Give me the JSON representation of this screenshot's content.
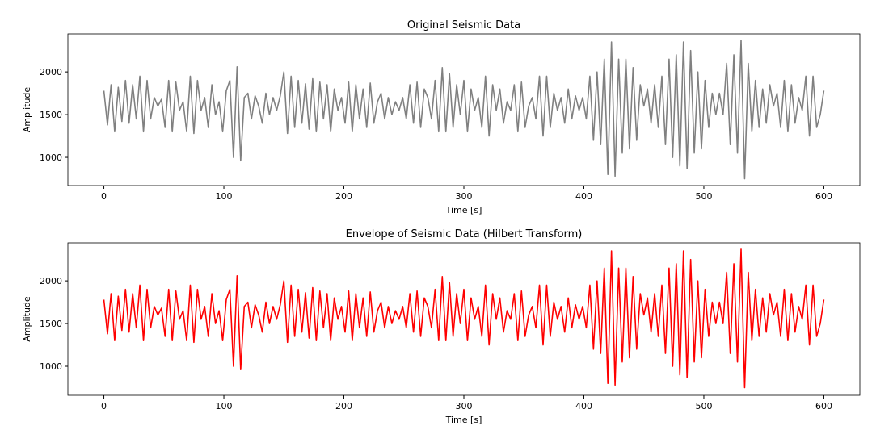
{
  "chart_data": [
    {
      "type": "line",
      "title": "Original Seismic Data",
      "x_label": "Time [s]",
      "y_label": "Amplitude",
      "xlim": [
        -30,
        630
      ],
      "ylim": [
        670,
        2445
      ],
      "xticks": [
        0,
        100,
        200,
        300,
        400,
        500,
        600
      ],
      "yticks": [
        1000,
        1500,
        2000
      ],
      "x": [
        0,
        3,
        6,
        9,
        12,
        15,
        18,
        21,
        24,
        27,
        30,
        33,
        36,
        39,
        42,
        45,
        48,
        51,
        54,
        57,
        60,
        63,
        66,
        69,
        72,
        75,
        78,
        81,
        84,
        87,
        90,
        93,
        96,
        99,
        102,
        105,
        108,
        111,
        114,
        117,
        120,
        123,
        126,
        129,
        132,
        135,
        138,
        141,
        144,
        147,
        150,
        153,
        156,
        159,
        162,
        165,
        168,
        171,
        174,
        177,
        180,
        183,
        186,
        189,
        192,
        195,
        198,
        201,
        204,
        207,
        210,
        213,
        216,
        219,
        222,
        225,
        228,
        231,
        234,
        237,
        240,
        243,
        246,
        249,
        252,
        255,
        258,
        261,
        264,
        267,
        270,
        273,
        276,
        279,
        282,
        285,
        288,
        291,
        294,
        297,
        300,
        303,
        306,
        309,
        312,
        315,
        318,
        321,
        324,
        327,
        330,
        333,
        336,
        339,
        342,
        345,
        348,
        351,
        354,
        357,
        360,
        363,
        366,
        369,
        372,
        375,
        378,
        381,
        384,
        387,
        390,
        393,
        396,
        399,
        402,
        405,
        408,
        411,
        414,
        417,
        420,
        423,
        426,
        429,
        432,
        435,
        438,
        441,
        444,
        447,
        450,
        453,
        456,
        459,
        462,
        465,
        468,
        471,
        474,
        477,
        480,
        483,
        486,
        489,
        492,
        495,
        498,
        501,
        504,
        507,
        510,
        513,
        516,
        519,
        522,
        525,
        528,
        531,
        534,
        537,
        540,
        543,
        546,
        549,
        552,
        555,
        558,
        561,
        564,
        567,
        570,
        573,
        576,
        579,
        582,
        585,
        588,
        591,
        594,
        597,
        600
      ],
      "series": [
        {
          "color": "#808080",
          "values": [
            1780,
            1380,
            1850,
            1300,
            1820,
            1420,
            1900,
            1400,
            1850,
            1450,
            1950,
            1300,
            1900,
            1450,
            1700,
            1600,
            1680,
            1350,
            1900,
            1300,
            1880,
            1550,
            1650,
            1300,
            1950,
            1280,
            1900,
            1550,
            1700,
            1350,
            1850,
            1500,
            1650,
            1300,
            1780,
            1900,
            1000,
            2060,
            960,
            1700,
            1750,
            1450,
            1720,
            1600,
            1400,
            1750,
            1500,
            1700,
            1550,
            1720,
            2000,
            1280,
            1950,
            1350,
            1900,
            1400,
            1860,
            1330,
            1920,
            1300,
            1880,
            1450,
            1850,
            1300,
            1800,
            1550,
            1700,
            1400,
            1880,
            1300,
            1850,
            1450,
            1800,
            1350,
            1870,
            1400,
            1650,
            1750,
            1450,
            1700,
            1500,
            1650,
            1550,
            1700,
            1450,
            1850,
            1400,
            1880,
            1350,
            1800,
            1700,
            1450,
            1900,
            1300,
            2050,
            1300,
            1980,
            1350,
            1850,
            1500,
            1900,
            1300,
            1800,
            1550,
            1700,
            1350,
            1950,
            1250,
            1850,
            1550,
            1800,
            1400,
            1650,
            1550,
            1850,
            1300,
            1880,
            1350,
            1600,
            1700,
            1450,
            1950,
            1250,
            1950,
            1350,
            1750,
            1550,
            1700,
            1400,
            1800,
            1450,
            1720,
            1550,
            1700,
            1450,
            1950,
            1200,
            2000,
            1150,
            2150,
            800,
            2350,
            780,
            2150,
            1050,
            2150,
            1100,
            2050,
            1200,
            1850,
            1600,
            1800,
            1400,
            1850,
            1350,
            1950,
            1150,
            2150,
            1000,
            2200,
            900,
            2350,
            870,
            2250,
            1050,
            2000,
            1100,
            1900,
            1350,
            1750,
            1500,
            1750,
            1500,
            2100,
            1150,
            2200,
            1050,
            2370,
            750,
            2100,
            1300,
            1900,
            1350,
            1800,
            1400,
            1850,
            1600,
            1750,
            1350,
            1900,
            1300,
            1850,
            1400,
            1700,
            1550,
            1950,
            1250,
            1950,
            1350,
            1500,
            1780
          ]
        }
      ]
    },
    {
      "type": "line",
      "title": "Envelope of Seismic Data (Hilbert Transform)",
      "x_label": "Time [s]",
      "y_label": "Amplitude",
      "xlim": [
        -30,
        630
      ],
      "ylim": [
        660,
        2445
      ],
      "xticks": [
        0,
        100,
        200,
        300,
        400,
        500,
        600
      ],
      "yticks": [
        1000,
        1500,
        2000
      ],
      "x": [
        0,
        3,
        6,
        9,
        12,
        15,
        18,
        21,
        24,
        27,
        30,
        33,
        36,
        39,
        42,
        45,
        48,
        51,
        54,
        57,
        60,
        63,
        66,
        69,
        72,
        75,
        78,
        81,
        84,
        87,
        90,
        93,
        96,
        99,
        102,
        105,
        108,
        111,
        114,
        117,
        120,
        123,
        126,
        129,
        132,
        135,
        138,
        141,
        144,
        147,
        150,
        153,
        156,
        159,
        162,
        165,
        168,
        171,
        174,
        177,
        180,
        183,
        186,
        189,
        192,
        195,
        198,
        201,
        204,
        207,
        210,
        213,
        216,
        219,
        222,
        225,
        228,
        231,
        234,
        237,
        240,
        243,
        246,
        249,
        252,
        255,
        258,
        261,
        264,
        267,
        270,
        273,
        276,
        279,
        282,
        285,
        288,
        291,
        294,
        297,
        300,
        303,
        306,
        309,
        312,
        315,
        318,
        321,
        324,
        327,
        330,
        333,
        336,
        339,
        342,
        345,
        348,
        351,
        354,
        357,
        360,
        363,
        366,
        369,
        372,
        375,
        378,
        381,
        384,
        387,
        390,
        393,
        396,
        399,
        402,
        405,
        408,
        411,
        414,
        417,
        420,
        423,
        426,
        429,
        432,
        435,
        438,
        441,
        444,
        447,
        450,
        453,
        456,
        459,
        462,
        465,
        468,
        471,
        474,
        477,
        480,
        483,
        486,
        489,
        492,
        495,
        498,
        501,
        504,
        507,
        510,
        513,
        516,
        519,
        522,
        525,
        528,
        531,
        534,
        537,
        540,
        543,
        546,
        549,
        552,
        555,
        558,
        561,
        564,
        567,
        570,
        573,
        576,
        579,
        582,
        585,
        588,
        591,
        594,
        597,
        600
      ],
      "series": [
        {
          "color": "#ff0000",
          "values": [
            1780,
            1380,
            1850,
            1300,
            1820,
            1420,
            1900,
            1400,
            1850,
            1450,
            1950,
            1300,
            1900,
            1450,
            1700,
            1600,
            1680,
            1350,
            1900,
            1300,
            1880,
            1550,
            1650,
            1300,
            1950,
            1280,
            1900,
            1550,
            1700,
            1350,
            1850,
            1500,
            1650,
            1300,
            1780,
            1900,
            1000,
            2060,
            960,
            1700,
            1750,
            1450,
            1720,
            1600,
            1400,
            1750,
            1500,
            1700,
            1550,
            1720,
            2000,
            1280,
            1950,
            1350,
            1900,
            1400,
            1860,
            1330,
            1920,
            1300,
            1880,
            1450,
            1850,
            1300,
            1800,
            1550,
            1700,
            1400,
            1880,
            1300,
            1850,
            1450,
            1800,
            1350,
            1870,
            1400,
            1650,
            1750,
            1450,
            1700,
            1500,
            1650,
            1550,
            1700,
            1450,
            1850,
            1400,
            1880,
            1350,
            1800,
            1700,
            1450,
            1900,
            1300,
            2050,
            1300,
            1980,
            1350,
            1850,
            1500,
            1900,
            1300,
            1800,
            1550,
            1700,
            1350,
            1950,
            1250,
            1850,
            1550,
            1800,
            1400,
            1650,
            1550,
            1850,
            1300,
            1880,
            1350,
            1600,
            1700,
            1450,
            1950,
            1250,
            1950,
            1350,
            1750,
            1550,
            1700,
            1400,
            1800,
            1450,
            1720,
            1550,
            1700,
            1450,
            1950,
            1200,
            2000,
            1150,
            2150,
            800,
            2350,
            780,
            2150,
            1050,
            2150,
            1100,
            2050,
            1200,
            1850,
            1600,
            1800,
            1400,
            1850,
            1350,
            1950,
            1150,
            2150,
            1000,
            2200,
            900,
            2350,
            870,
            2250,
            1050,
            2000,
            1100,
            1900,
            1350,
            1750,
            1500,
            1750,
            1500,
            2100,
            1150,
            2200,
            1050,
            2370,
            750,
            2100,
            1300,
            1900,
            1350,
            1800,
            1400,
            1850,
            1600,
            1750,
            1350,
            1900,
            1300,
            1850,
            1400,
            1700,
            1550,
            1950,
            1250,
            1950,
            1350,
            1500,
            1780
          ]
        }
      ]
    }
  ]
}
